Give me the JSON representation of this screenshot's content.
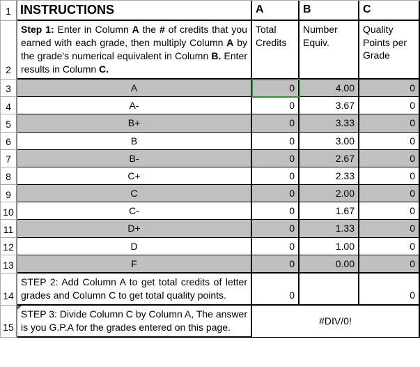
{
  "rownums": [
    "1",
    "2",
    "3",
    "4",
    "5",
    "6",
    "7",
    "8",
    "9",
    "10",
    "11",
    "12",
    "13",
    "14",
    "15"
  ],
  "header": {
    "title": "INSTRUCTIONS",
    "colA": "A",
    "colB": "B",
    "colC": "C"
  },
  "step1": {
    "pre": "Step 1:",
    "t1": " Enter in Column ",
    "bA": "A",
    "t2": " the ",
    "bHash": "#",
    "t3": " of credits that you earned with each grade, then multiply Column ",
    "bA2": "A",
    "t4": " by the grade's numerical equivalent in Column ",
    "bB": "B.",
    "t5": " Enter results in Column ",
    "bC": "C."
  },
  "subheaders": {
    "a": "Total Credits",
    "b": "Number Equiv.",
    "c": "Quality Points per Grade"
  },
  "rows": [
    {
      "grade": "A",
      "a": "0",
      "b": "4.00",
      "c": "0",
      "shade": true
    },
    {
      "grade": "A-",
      "a": "0",
      "b": "3.67",
      "c": "0",
      "shade": false
    },
    {
      "grade": "B+",
      "a": "0",
      "b": "3.33",
      "c": "0",
      "shade": true
    },
    {
      "grade": "B",
      "a": "0",
      "b": "3.00",
      "c": "0",
      "shade": false
    },
    {
      "grade": "B-",
      "a": "0",
      "b": "2.67",
      "c": "0",
      "shade": true
    },
    {
      "grade": "C+",
      "a": "0",
      "b": "2.33",
      "c": "0",
      "shade": false
    },
    {
      "grade": "C",
      "a": "0",
      "b": "2.00",
      "c": "0",
      "shade": true
    },
    {
      "grade": "C-",
      "a": "0",
      "b": "1.67",
      "c": "0",
      "shade": false
    },
    {
      "grade": "D+",
      "a": "0",
      "b": "1.33",
      "c": "0",
      "shade": true
    },
    {
      "grade": "D",
      "a": "0",
      "b": "1.00",
      "c": "0",
      "shade": false
    },
    {
      "grade": "F",
      "a": "0",
      "b": "0.00",
      "c": "0",
      "shade": true
    }
  ],
  "step2": "STEP 2: Add Column A to get total credits of letter grades and Column C to get total quality points.",
  "step2vals": {
    "a": "0",
    "c": "0"
  },
  "step3": "STEP 3: Divide Column C by Column A, The answer is you G.P.A for the grades entered on this page.",
  "step3val": "#DIV/0!",
  "colors": {
    "shade": "#c0c0c0",
    "border": "#000000",
    "grid": "#aaaaaa",
    "selection": "#3a8a3a"
  }
}
